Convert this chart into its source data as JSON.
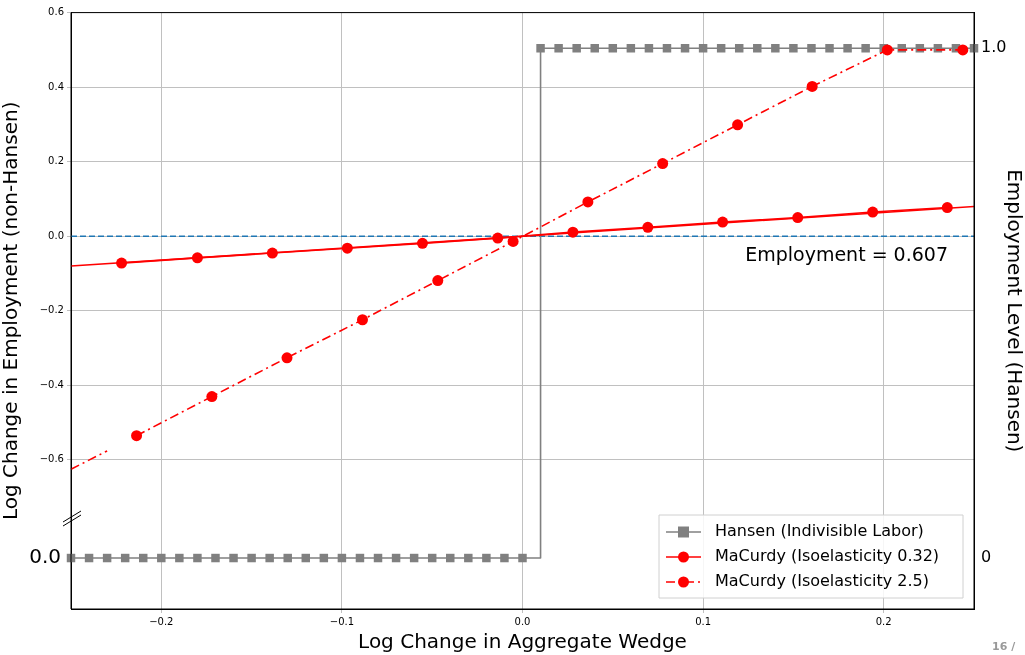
{
  "chart_data": {
    "type": "line",
    "xlabel": "Log Change in Aggregate Wedge",
    "ylabel": "Log Change in Employment (non-Hansen)",
    "y2label": "Employment Level (Hansen)",
    "xlim": [
      -0.25,
      0.25
    ],
    "xticks": [
      {
        "value": -0.2,
        "label": "−0.2"
      },
      {
        "value": -0.1,
        "label": "−0.1"
      },
      {
        "value": 0,
        "label": "0.0"
      },
      0.1,
      0.2
    ],
    "ylim": [
      -1.0,
      0.6
    ],
    "yticks": [
      {
        "value": -0.6,
        "label": "−0.6"
      },
      {
        "value": -0.4,
        "label": "−0.4"
      },
      {
        "value": -0.2,
        "label": "−0.2"
      },
      {
        "value": 0,
        "label": "0.0"
      },
      0.2,
      0.4,
      0.6
    ],
    "y2lim": [
      -0.1,
      1.07
    ],
    "y2ticks": [
      {
        "value": 0,
        "label": "0"
      },
      {
        "value": 1,
        "label": "1.0"
      }
    ],
    "grid": true,
    "legend": "bottom right",
    "series": [
      {
        "name": "Hansen (Indivisible Labor)",
        "type": "step",
        "axis": "y2",
        "color": "#808080",
        "marker": "square",
        "line_style": "solid",
        "x": [
          -0.25,
          -0.24,
          -0.23,
          -0.22,
          -0.21,
          -0.2,
          -0.19,
          -0.18,
          -0.17,
          -0.16,
          -0.15,
          -0.14,
          -0.13,
          -0.12,
          -0.11,
          -0.1,
          -0.09,
          -0.08,
          -0.07,
          -0.06,
          -0.05,
          -0.04,
          -0.03,
          -0.02,
          -0.01,
          0.0,
          0.01,
          0.02,
          0.03,
          0.04,
          0.05,
          0.06,
          0.07,
          0.08,
          0.09,
          0.1,
          0.11,
          0.12,
          0.13,
          0.14,
          0.15,
          0.16,
          0.17,
          0.18,
          0.19,
          0.2,
          0.21,
          0.22,
          0.23,
          0.24,
          0.25
        ],
        "values": [
          0,
          0,
          0,
          0,
          0,
          0,
          0,
          0,
          0,
          0,
          0,
          0,
          0,
          0,
          0,
          0,
          0,
          0,
          0,
          0,
          0,
          0,
          0,
          0,
          0,
          0,
          1,
          1,
          1,
          1,
          1,
          1,
          1,
          1,
          1,
          1,
          1,
          1,
          1,
          1,
          1,
          1,
          1,
          1,
          1,
          1,
          1,
          1,
          1,
          1,
          1
        ]
      },
      {
        "color": "#ff0000",
        "marker": "none",
        "line_style": "solid",
        "x": [
          -0.25,
          0.25
        ],
        "values": [
          -0.08,
          0.08
        ]
      },
      {
        "color": "#ff0000",
        "marker": "none",
        "line_style": "dashed",
        "x": [
          -0.25,
          -0.23
        ],
        "values": [
          -0.625,
          -0.576
        ]
      },
      {
        "name": "MaCurdy (Isoelasticity 0.32)",
        "color": "#ff0000",
        "marker": "circle",
        "line_style": "solid",
        "x": [
          -0.222,
          -0.18,
          -0.1385,
          -0.097,
          -0.0554,
          -0.0137,
          0.0279,
          0.0694,
          0.1108,
          0.1524,
          0.1939,
          0.2352
        ],
        "values": [
          -0.072,
          -0.058,
          -0.045,
          -0.032,
          -0.019,
          -0.005,
          0.011,
          0.024,
          0.038,
          0.05,
          0.065,
          0.077
        ]
      },
      {
        "name": "MaCurdy (Isoelasticity 2.5)",
        "color": "#ff0000",
        "marker": "circle",
        "line_style": "dashed",
        "x": [
          -0.2137,
          -0.172,
          -0.1304,
          -0.0886,
          -0.0469,
          -0.0052,
          0.0362,
          0.0776,
          0.1191,
          0.1604,
          0.202,
          0.2438
        ],
        "values": [
          -0.535,
          -0.43,
          -0.326,
          -0.224,
          -0.119,
          -0.014,
          0.092,
          0.195,
          0.299,
          0.402,
          0.5,
          0.5
        ]
      }
    ],
    "ref_lines": [
      {
        "axis": "y",
        "value": 0,
        "color": "#1f77b4",
        "line_style": "dashed"
      }
    ],
    "annotations": [
      "0.0",
      "Employment = 0.607",
      "16 /"
    ]
  }
}
